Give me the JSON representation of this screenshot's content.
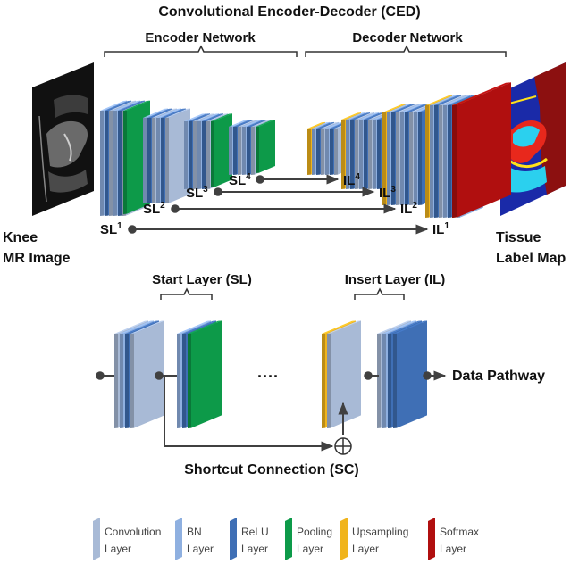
{
  "title": "Convolutional Encoder-Decoder (CED)",
  "encoder_label": "Encoder Network",
  "decoder_label": "Decoder Network",
  "input_label_line1": "Knee",
  "input_label_line2": "MR Image",
  "output_label_line1": "Tissue",
  "output_label_line2": "Label Map",
  "shortcuts": [
    {
      "start": "SL",
      "start_sup": "1",
      "insert": "IL",
      "insert_sup": "1"
    },
    {
      "start": "SL",
      "start_sup": "2",
      "insert": "IL",
      "insert_sup": "2"
    },
    {
      "start": "SL",
      "start_sup": "3",
      "insert": "IL",
      "insert_sup": "3"
    },
    {
      "start": "SL",
      "start_sup": "4",
      "insert": "IL",
      "insert_sup": "4"
    }
  ],
  "detail": {
    "start_layer_label": "Start Layer (SL)",
    "insert_layer_label": "Insert Layer (IL)",
    "data_pathway_label": "Data Pathway",
    "shortcut_label": "Shortcut Connection (SC)",
    "dots": "····"
  },
  "legend": [
    {
      "line1": "Convolution",
      "line2": "Layer",
      "color": "#a8bad6",
      "icon": "convolution-layer-swatch"
    },
    {
      "line1": "BN",
      "line2": "Layer",
      "color": "#8fb0e0",
      "icon": "bn-layer-swatch"
    },
    {
      "line1": "ReLU",
      "line2": "Layer",
      "color": "#3f6fb5",
      "icon": "relu-layer-swatch"
    },
    {
      "line1": "Pooling",
      "line2": "Layer",
      "color": "#0d9a49",
      "icon": "pooling-layer-swatch"
    },
    {
      "line1": "Upsampling",
      "line2": "Layer",
      "color": "#f0b41c",
      "icon": "upsampling-layer-swatch"
    },
    {
      "line1": "Softmax",
      "line2": "Layer",
      "color": "#b00f0f",
      "icon": "softmax-layer-swatch"
    }
  ],
  "colors": {
    "conv": "#a8bad6",
    "bn": "#8fb0e0",
    "relu": "#3f6fb5",
    "pool": "#0d9a49",
    "up": "#f0b41c",
    "softmax": "#b00f0f",
    "line": "#404040"
  }
}
